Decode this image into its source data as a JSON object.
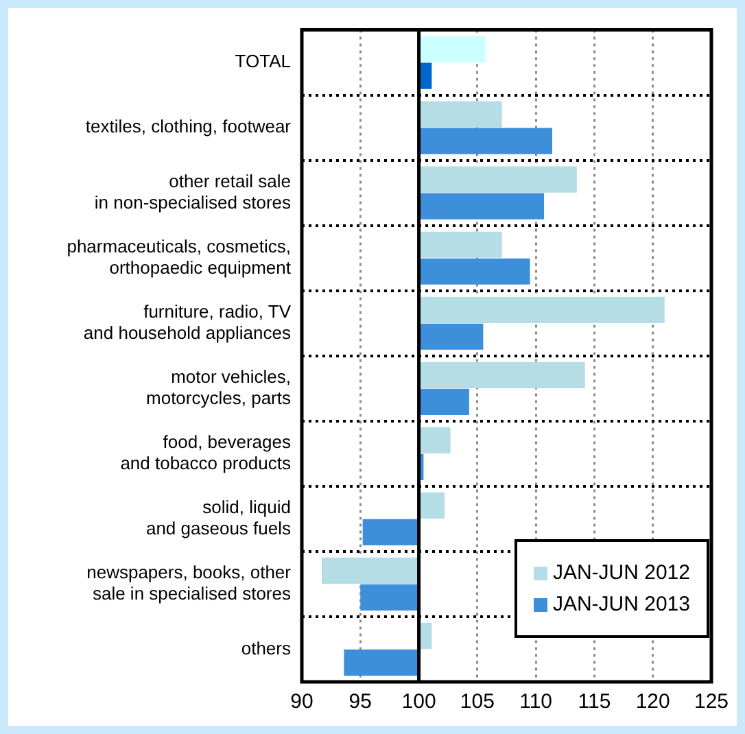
{
  "chart_data": {
    "type": "bar",
    "orientation": "horizontal",
    "categories": [
      "TOTAL",
      "textiles, clothing, footwear",
      "other retail sale\nin non-specialised stores",
      "pharmaceuticals, cosmetics,\northopaedic equipment",
      "furniture, radio, TV\nand household appliances",
      "motor vehicles,\nmotorcycles, parts",
      "food, beverages\nand tobacco products",
      "solid, liquid\nand gaseous fuels",
      "newspapers, books, other\nsale in specialised stores",
      "others"
    ],
    "series": [
      {
        "name": "JAN-JUN 2012",
        "color": "#b4dde6",
        "colors": [
          "#ccffff",
          "#b4dde6",
          "#b4dde6",
          "#b4dde6",
          "#b4dde6",
          "#b4dde6",
          "#b4dde6",
          "#b4dde6",
          "#b4dde6",
          "#b4dde6"
        ],
        "base": [
          100,
          100,
          100,
          100,
          100,
          100,
          100,
          100,
          100,
          100
        ],
        "values": [
          5.7,
          7.1,
          13.5,
          7.1,
          21.0,
          14.2,
          2.7,
          2.2,
          -8.3,
          1.1
        ]
      },
      {
        "name": "JAN-JUN 2013",
        "color": "#3d8fd9",
        "colors": [
          "#0066cc",
          "#3d8fd9",
          "#3d8fd9",
          "#3d8fd9",
          "#3d8fd9",
          "#3d8fd9",
          "#3d8fd9",
          "#3d8fd9",
          "#3d8fd9",
          "#3d8fd9"
        ],
        "base": [
          100,
          100,
          100,
          100,
          100,
          100,
          100,
          100,
          100,
          100
        ],
        "values": [
          1.1,
          11.4,
          10.7,
          9.5,
          5.5,
          4.3,
          0.4,
          -4.8,
          -5.0,
          -6.4
        ]
      }
    ],
    "xlim": [
      90,
      125
    ],
    "xticks": [
      90,
      95,
      100,
      105,
      110,
      115,
      120,
      125
    ],
    "ref_lines": [
      {
        "axis": "x",
        "value": 100,
        "color": "#000000"
      }
    ],
    "grid": true,
    "legend": "bottom right"
  }
}
